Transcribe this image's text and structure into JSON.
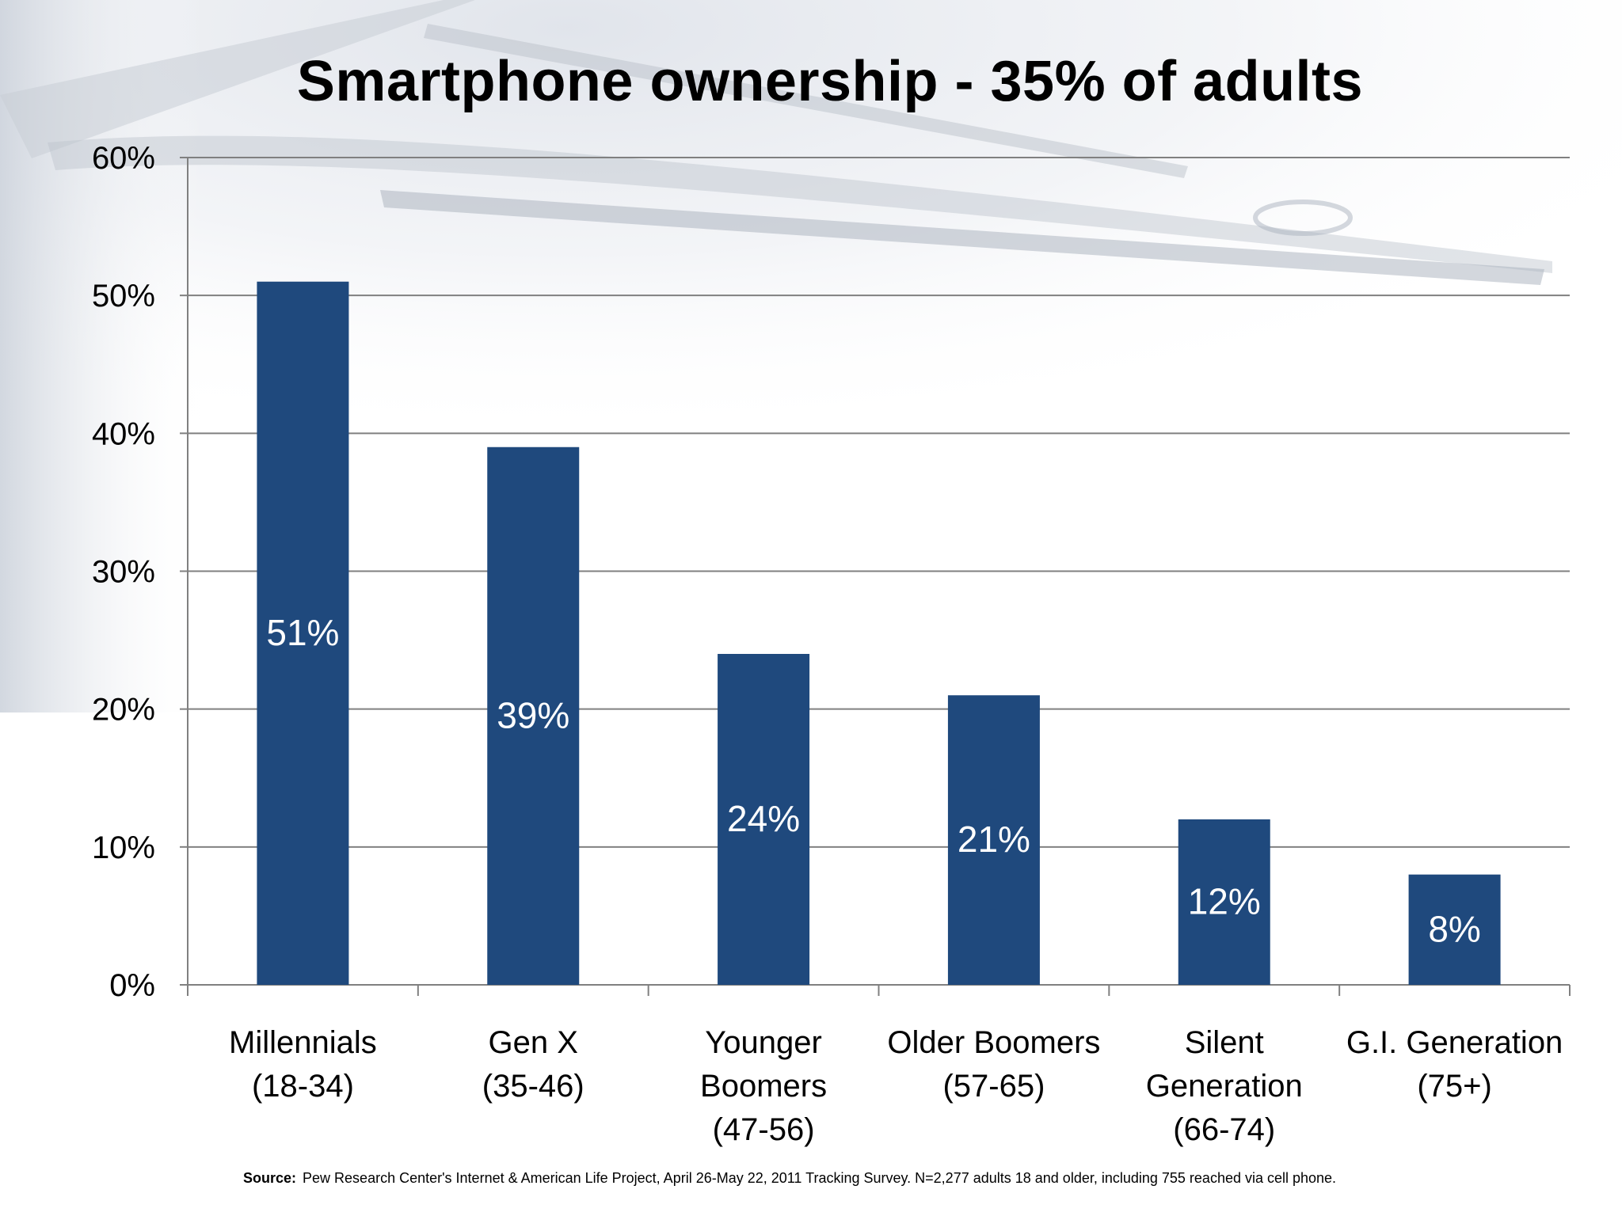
{
  "slide": {
    "title": "Smartphone ownership - 35% of adults",
    "source_label": "Source:",
    "source_text": "Pew Research Center's Internet & American Life Project, April 26-May 22, 2011 Tracking Survey. N=2,277 adults 18 and older, including 755 reached via cell phone."
  },
  "colors": {
    "bar": "#1f497d",
    "bar_label": "#ffffff",
    "axis_text": "#000000",
    "gridline": "#808080"
  },
  "chart_data": {
    "type": "bar",
    "title": "Smartphone ownership - 35% of adults",
    "xlabel": "",
    "ylabel": "",
    "categories": [
      [
        "Millennials",
        "(18-34)"
      ],
      [
        "Gen X",
        "(35-46)"
      ],
      [
        "Younger",
        "Boomers",
        "(47-56)"
      ],
      [
        "Older Boomers",
        "(57-65)"
      ],
      [
        "Silent",
        "Generation",
        "(66-74)"
      ],
      [
        "G.I. Generation",
        "(75+)"
      ]
    ],
    "values": [
      51,
      39,
      24,
      21,
      12,
      8
    ],
    "data_labels": [
      "51%",
      "39%",
      "24%",
      "21%",
      "12%",
      "8%"
    ],
    "yticks": [
      0,
      10,
      20,
      30,
      40,
      50,
      60
    ],
    "ytick_labels": [
      "0%",
      "10%",
      "20%",
      "30%",
      "40%",
      "50%",
      "60%"
    ],
    "ylim": [
      0,
      60
    ],
    "grid": true,
    "legend": "none"
  }
}
